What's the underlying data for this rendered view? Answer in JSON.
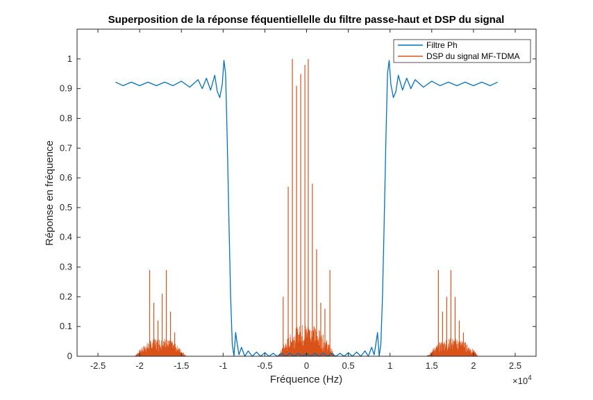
{
  "chart_data": {
    "type": "line",
    "title": "Superposition de la réponse féquentiellelle du filtre passe-haut et DSP du signal",
    "xlabel": "Fréquence (Hz)",
    "ylabel": "Réponse en fréquence",
    "x_exponent": "×10",
    "x_exponent_power": "4",
    "xlim": [
      -27500,
      27500
    ],
    "ylim": [
      0,
      1.1
    ],
    "x_ticks": [
      -25000,
      -20000,
      -15000,
      -10000,
      -5000,
      0,
      5000,
      10000,
      15000,
      20000,
      25000
    ],
    "x_tick_labels": [
      "-2.5",
      "-2",
      "-1.5",
      "-1",
      "-0.5",
      "0",
      "0.5",
      "1",
      "1.5",
      "2",
      "2.5"
    ],
    "y_ticks": [
      0,
      0.1,
      0.2,
      0.3,
      0.4,
      0.5,
      0.6,
      0.7,
      0.8,
      0.9,
      1
    ],
    "y_tick_labels": [
      "0",
      "0.1",
      "0.2",
      "0.3",
      "0.4",
      "0.5",
      "0.6",
      "0.7",
      "0.8",
      "0.9",
      "1"
    ],
    "grid": false,
    "legend_position": "top-right",
    "series": [
      {
        "name": "Filtre Ph",
        "color": "#0072bd",
        "kind": "line",
        "x": [
          -22900,
          -22000,
          -21000,
          -20000,
          -19000,
          -18000,
          -17000,
          -16000,
          -15000,
          -14000,
          -13000,
          -12500,
          -12000,
          -11500,
          -11000,
          -10700,
          -10400,
          -10100,
          -9900,
          -9700,
          -9500,
          -9300,
          -9100,
          -8900,
          -8700,
          -8500,
          -8300,
          -8100,
          -7800,
          -7400,
          -7000,
          -6500,
          -6000,
          -5500,
          -5000,
          -4500,
          -4000,
          -3500,
          -3000,
          -2500,
          -2000,
          -1500,
          -1000,
          -500,
          0,
          500,
          1000,
          1500,
          2000,
          2500,
          3000,
          3500,
          4000,
          4500,
          5000,
          5500,
          6000,
          6500,
          7000,
          7400,
          7800,
          8100,
          8300,
          8500,
          8700,
          8900,
          9100,
          9300,
          9500,
          9700,
          9900,
          10100,
          10400,
          10700,
          11000,
          11500,
          12000,
          12500,
          13000,
          14000,
          15000,
          16000,
          17000,
          18000,
          19000,
          20000,
          21000,
          22000,
          22900
        ],
        "values": [
          0.922,
          0.91,
          0.922,
          0.91,
          0.922,
          0.91,
          0.922,
          0.91,
          0.925,
          0.905,
          0.93,
          0.9,
          0.935,
          0.895,
          0.945,
          0.89,
          0.87,
          0.915,
          0.995,
          0.95,
          0.72,
          0.45,
          0.2,
          0.04,
          0.0,
          0.08,
          0.04,
          0.005,
          0.03,
          0.0,
          0.018,
          0.0,
          0.014,
          0.0,
          0.012,
          0.0,
          0.01,
          0.0,
          0.01,
          0.0,
          0.01,
          0.0,
          0.01,
          0.0,
          0.01,
          0.0,
          0.01,
          0.0,
          0.01,
          0.0,
          0.01,
          0.0,
          0.01,
          0.0,
          0.012,
          0.0,
          0.014,
          0.0,
          0.018,
          0.0,
          0.03,
          0.005,
          0.04,
          0.08,
          0.0,
          0.04,
          0.2,
          0.45,
          0.72,
          0.95,
          0.995,
          0.915,
          0.87,
          0.89,
          0.945,
          0.895,
          0.935,
          0.9,
          0.93,
          0.905,
          0.925,
          0.91,
          0.922,
          0.91,
          0.922,
          0.91,
          0.922,
          0.91,
          0.922
        ]
      },
      {
        "name": "DSP du signal MF-TDMA",
        "color": "#d95319",
        "kind": "spikes",
        "x": [
          -18800,
          -18300,
          -17800,
          -17300,
          -16800,
          -16300,
          -15800,
          -2800,
          -2200,
          -1700,
          -1200,
          -700,
          -200,
          200,
          700,
          1200,
          1700,
          2200,
          2800,
          15800,
          16300,
          16800,
          17300,
          17800,
          18300,
          18800
        ],
        "values": [
          0.29,
          0.18,
          0.12,
          0.21,
          0.29,
          0.15,
          0.08,
          0.2,
          0.57,
          1.0,
          0.91,
          0.95,
          0.98,
          1.0,
          0.58,
          0.36,
          0.18,
          0.16,
          0.29,
          0.29,
          0.15,
          0.2,
          0.29,
          0.2,
          0.12,
          0.08
        ],
        "clusters": [
          {
            "center": -17500,
            "width": 6200,
            "floor": 0.045
          },
          {
            "center": 0,
            "width": 6800,
            "floor": 0.08
          },
          {
            "center": 17500,
            "width": 6200,
            "floor": 0.045
          }
        ]
      }
    ]
  }
}
